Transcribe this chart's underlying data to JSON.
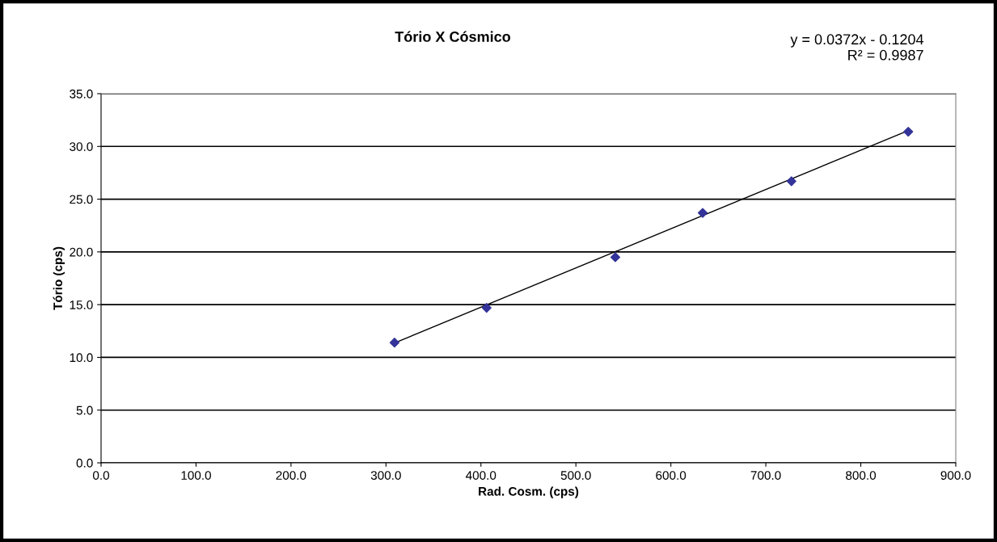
{
  "chart_data": {
    "type": "scatter",
    "title": "Tório X Cósmico",
    "xlabel": "Rad. Cosm. (cps)",
    "ylabel": "Tório (cps)",
    "annotations": [
      "y = 0.0372x - 0.1204\nR² = 0.9987"
    ],
    "series": [
      {
        "color": "#333399",
        "x": [
          309,
          406,
          541.5,
          633.5,
          727,
          850
        ],
        "values": [
          11.4,
          14.7,
          19.5,
          23.7,
          26.7,
          31.4
        ],
        "marker": "diamond"
      },
      {
        "type": "line",
        "color": "#000000",
        "x": [
          309,
          850
        ],
        "values": [
          11.37,
          31.5
        ],
        "marker": "none",
        "line_style": "solid"
      }
    ],
    "xlim": [
      0,
      900
    ],
    "ylim": [
      0,
      35
    ],
    "xticks": [
      {
        "value": 0,
        "label": "0.0"
      },
      {
        "value": 100,
        "label": "100.0"
      },
      {
        "value": 200,
        "label": "200.0"
      },
      {
        "value": 300,
        "label": "300.0"
      },
      {
        "value": 400,
        "label": "400.0"
      },
      {
        "value": 500,
        "label": "500.0"
      },
      {
        "value": 600,
        "label": "600.0"
      },
      {
        "value": 700,
        "label": "700.0"
      },
      {
        "value": 800,
        "label": "800.0"
      },
      {
        "value": 900,
        "label": "900.0"
      }
    ],
    "yticks": [
      {
        "value": 0,
        "label": "0.0"
      },
      {
        "value": 5,
        "label": "5.0"
      },
      {
        "value": 10,
        "label": "10.0"
      },
      {
        "value": 15,
        "label": "15.0"
      },
      {
        "value": 20,
        "label": "20.0"
      },
      {
        "value": 25,
        "label": "25.0"
      },
      {
        "value": 30,
        "label": "30.0"
      },
      {
        "value": 35,
        "label": "35.0"
      }
    ],
    "grid": "y"
  }
}
